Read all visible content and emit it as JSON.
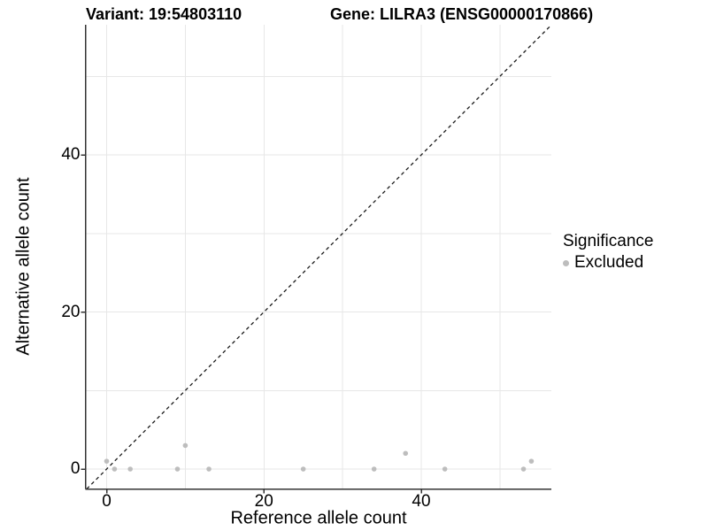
{
  "header": {
    "title_left": "Variant: 19:54803110",
    "title_right": "Gene: LILRA3 (ENSG00000170866)"
  },
  "chart_data": {
    "type": "scatter",
    "title": "Variant: 19:54803110 — Gene: LILRA3 (ENSG00000170866)",
    "xlabel": "Reference allele count",
    "ylabel": "Alternative allele count",
    "x_ticks": [
      0,
      20,
      40
    ],
    "y_ticks": [
      0,
      20,
      40
    ],
    "grid_breaks": [
      0,
      10,
      20,
      30,
      40,
      50
    ],
    "xlim": [
      -2.7,
      56.6
    ],
    "ylim": [
      -2.5,
      56.6
    ],
    "grid": "on",
    "points": [
      {
        "x": 0,
        "y": 1,
        "series": "Excluded"
      },
      {
        "x": 1,
        "y": 0,
        "series": "Excluded"
      },
      {
        "x": 3,
        "y": 0,
        "series": "Excluded"
      },
      {
        "x": 9,
        "y": 0,
        "series": "Excluded"
      },
      {
        "x": 10,
        "y": 3,
        "series": "Excluded"
      },
      {
        "x": 13,
        "y": 0,
        "series": "Excluded"
      },
      {
        "x": 25,
        "y": 0,
        "series": "Excluded"
      },
      {
        "x": 34,
        "y": 0,
        "series": "Excluded"
      },
      {
        "x": 38,
        "y": 2,
        "series": "Excluded"
      },
      {
        "x": 43,
        "y": 0,
        "series": "Excluded"
      },
      {
        "x": 53,
        "y": 0,
        "series": "Excluded"
      },
      {
        "x": 54,
        "y": 1,
        "series": "Excluded"
      }
    ],
    "identity_line": {
      "slope": 1,
      "intercept": 0,
      "style": "dashed",
      "color": "#1a1a1a"
    },
    "point_color": "#bdbdbd",
    "grid_color": "#e7e7e7",
    "axis_color": "#333333",
    "legend": {
      "position": "right",
      "title": "Significance",
      "items": [
        {
          "label": "Excluded",
          "color": "#bdbdbd"
        }
      ]
    }
  }
}
